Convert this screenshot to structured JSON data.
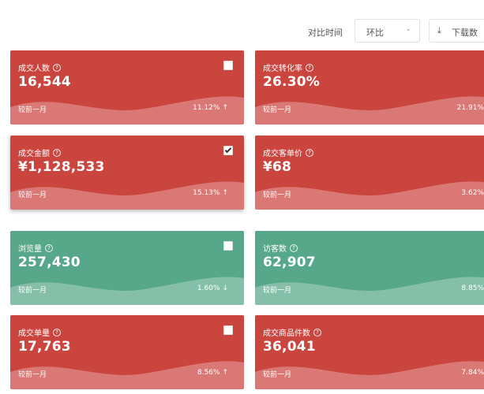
{
  "toolbar": {
    "compare_label": "对比时间",
    "compare_select": "环比",
    "download_label": "下载数"
  },
  "cards": [
    {
      "title": "成交人数",
      "value": "16,544",
      "compare": "较前一月",
      "percent": "11.12%",
      "arrow": "↑",
      "checked": false
    },
    {
      "title": "成交转化率",
      "value": "26.30%",
      "compare": "较前一月",
      "percent": "21.91%",
      "arrow": "",
      "checked": null
    },
    {
      "title": "成交金额",
      "value": "¥1,128,533",
      "compare": "较前一月",
      "percent": "15.13%",
      "arrow": "↑",
      "checked": true
    },
    {
      "title": "成交客单价",
      "value": "¥68",
      "compare": "较前一月",
      "percent": "3.62%",
      "arrow": "",
      "checked": null
    },
    {
      "title": "浏览量",
      "value": "257,430",
      "compare": "较前一月",
      "percent": "1.60%",
      "arrow": "↓",
      "checked": false
    },
    {
      "title": "访客数",
      "value": "62,907",
      "compare": "较前一月",
      "percent": "8.85%",
      "arrow": "",
      "checked": null
    },
    {
      "title": "成交单量",
      "value": "17,763",
      "compare": "较前一月",
      "percent": "8.56%",
      "arrow": "↑",
      "checked": false
    },
    {
      "title": "成交商品件数",
      "value": "36,041",
      "compare": "较前一月",
      "percent": "7.84%",
      "arrow": "",
      "checked": null
    }
  ],
  "colors": {
    "red": "#cb453f",
    "green": "#57a78a"
  }
}
